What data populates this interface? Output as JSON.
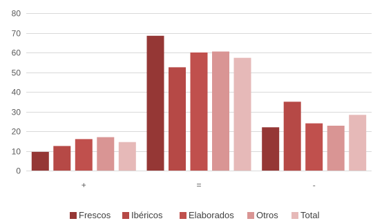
{
  "chart_data": {
    "type": "bar",
    "categories": [
      "+",
      "=",
      "-"
    ],
    "series": [
      {
        "name": "Frescos",
        "color": "#953735",
        "values": [
          9.5,
          68.5,
          22.0
        ]
      },
      {
        "name": "Ibéricos",
        "color": "#b64946",
        "values": [
          12.5,
          52.5,
          35.0
        ]
      },
      {
        "name": "Elaborados",
        "color": "#c0504d",
        "values": [
          16.0,
          60.0,
          24.0
        ]
      },
      {
        "name": "Otros",
        "color": "#d99594",
        "values": [
          17.0,
          60.5,
          22.8
        ]
      },
      {
        "name": "Total",
        "color": "#e6b9b8",
        "values": [
          14.5,
          57.3,
          28.3
        ]
      }
    ],
    "ylim": [
      0,
      80
    ],
    "yticks": [
      0,
      10,
      20,
      30,
      40,
      50,
      60,
      70,
      80
    ],
    "grid": true,
    "legend_position": "bottom"
  }
}
